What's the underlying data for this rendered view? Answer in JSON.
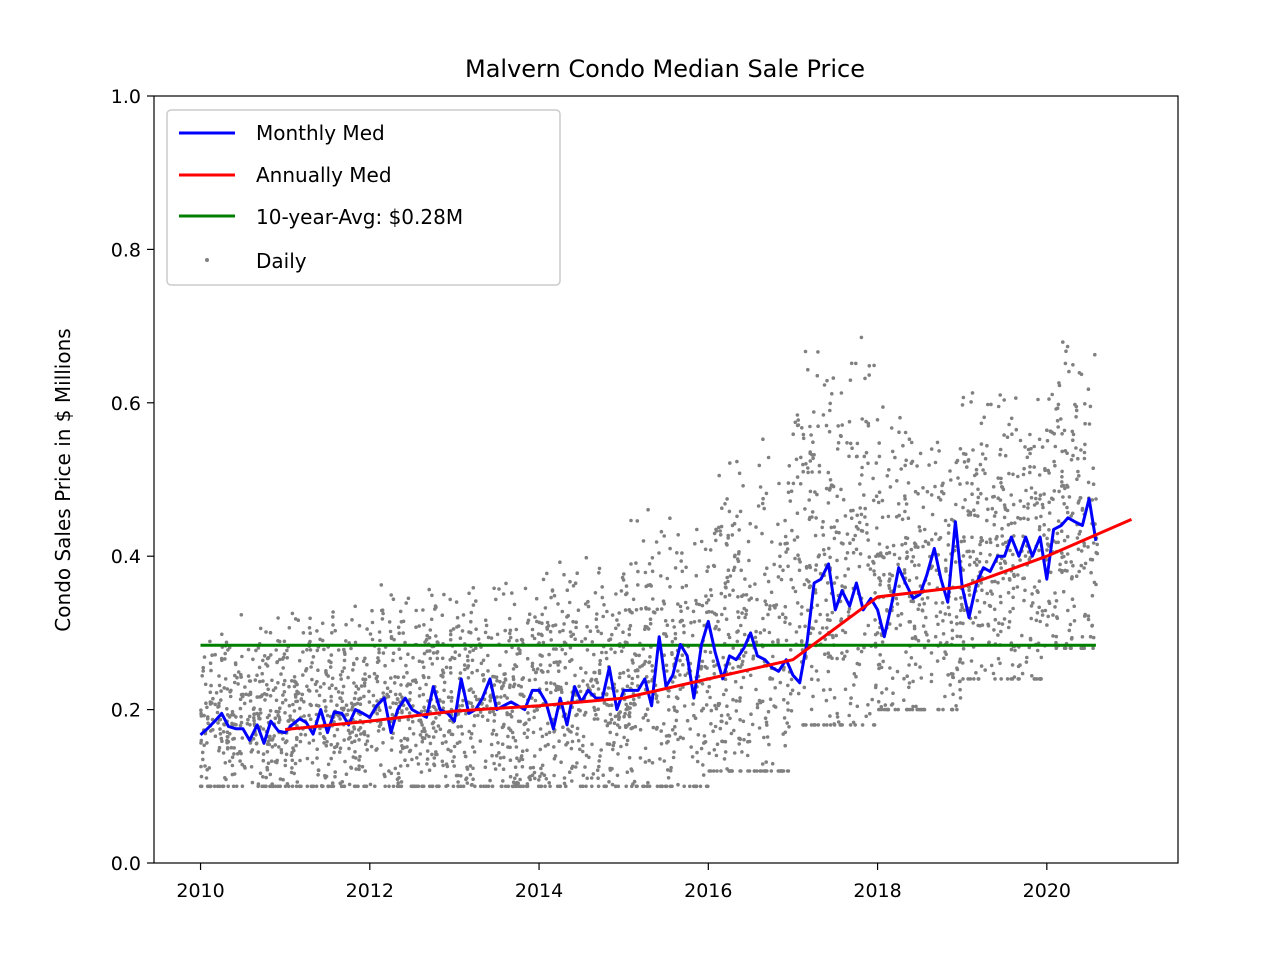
{
  "chart_data": {
    "type": "line",
    "title": "Malvern Condo Median Sale Price",
    "xlabel": "",
    "ylabel": "Condo Sales Price in $ Millions",
    "xlim": [
      2009.45,
      2021.55
    ],
    "ylim": [
      0.0,
      1.0
    ],
    "x_ticks": [
      2010,
      2012,
      2014,
      2016,
      2018,
      2020
    ],
    "x_tick_labels": [
      "2010",
      "2012",
      "2014",
      "2016",
      "2018",
      "2020"
    ],
    "y_ticks": [
      0.0,
      0.2,
      0.4,
      0.6,
      0.8,
      1.0
    ],
    "y_tick_labels": [
      "0.0",
      "0.2",
      "0.4",
      "0.6",
      "0.8",
      "1.0"
    ],
    "grid": false,
    "legend_position": "upper-left",
    "series": [
      {
        "name": "Monthly Med",
        "kind": "line",
        "color": "#0000ff",
        "x": [
          2010.0,
          2010.08,
          2010.17,
          2010.25,
          2010.33,
          2010.42,
          2010.5,
          2010.58,
          2010.67,
          2010.75,
          2010.83,
          2010.92,
          2011.0,
          2011.08,
          2011.17,
          2011.25,
          2011.33,
          2011.42,
          2011.5,
          2011.58,
          2011.67,
          2011.75,
          2011.83,
          2011.92,
          2012.0,
          2012.08,
          2012.17,
          2012.25,
          2012.33,
          2012.42,
          2012.5,
          2012.58,
          2012.67,
          2012.75,
          2012.83,
          2012.92,
          2013.0,
          2013.08,
          2013.17,
          2013.25,
          2013.33,
          2013.42,
          2013.5,
          2013.58,
          2013.67,
          2013.75,
          2013.83,
          2013.92,
          2014.0,
          2014.08,
          2014.17,
          2014.25,
          2014.33,
          2014.42,
          2014.5,
          2014.58,
          2014.67,
          2014.75,
          2014.83,
          2014.92,
          2015.0,
          2015.08,
          2015.17,
          2015.25,
          2015.33,
          2015.42,
          2015.5,
          2015.58,
          2015.67,
          2015.75,
          2015.83,
          2015.92,
          2016.0,
          2016.08,
          2016.17,
          2016.25,
          2016.33,
          2016.42,
          2016.5,
          2016.58,
          2016.67,
          2016.75,
          2016.83,
          2016.92,
          2017.0,
          2017.08,
          2017.17,
          2017.25,
          2017.33,
          2017.42,
          2017.5,
          2017.58,
          2017.67,
          2017.75,
          2017.83,
          2017.92,
          2018.0,
          2018.08,
          2018.17,
          2018.25,
          2018.33,
          2018.42,
          2018.5,
          2018.58,
          2018.67,
          2018.75,
          2018.83,
          2018.92,
          2019.0,
          2019.08,
          2019.17,
          2019.25,
          2019.33,
          2019.42,
          2019.5,
          2019.58,
          2019.67,
          2019.75,
          2019.83,
          2019.92,
          2020.0,
          2020.08,
          2020.17,
          2020.25,
          2020.33,
          2020.42,
          2020.5,
          2020.58
        ],
        "y": [
          0.167,
          0.175,
          0.185,
          0.195,
          0.178,
          0.175,
          0.175,
          0.16,
          0.18,
          0.156,
          0.185,
          0.172,
          0.17,
          0.18,
          0.188,
          0.183,
          0.168,
          0.2,
          0.17,
          0.197,
          0.195,
          0.18,
          0.2,
          0.195,
          0.19,
          0.205,
          0.215,
          0.17,
          0.2,
          0.215,
          0.2,
          0.195,
          0.19,
          0.23,
          0.2,
          0.195,
          0.185,
          0.24,
          0.195,
          0.2,
          0.215,
          0.24,
          0.2,
          0.205,
          0.21,
          0.205,
          0.2,
          0.225,
          0.225,
          0.21,
          0.175,
          0.215,
          0.18,
          0.23,
          0.21,
          0.225,
          0.215,
          0.215,
          0.255,
          0.2,
          0.225,
          0.225,
          0.225,
          0.24,
          0.205,
          0.295,
          0.23,
          0.245,
          0.285,
          0.27,
          0.215,
          0.285,
          0.315,
          0.275,
          0.24,
          0.27,
          0.265,
          0.28,
          0.3,
          0.27,
          0.265,
          0.255,
          0.25,
          0.265,
          0.245,
          0.235,
          0.29,
          0.365,
          0.37,
          0.39,
          0.33,
          0.355,
          0.335,
          0.365,
          0.33,
          0.345,
          0.33,
          0.295,
          0.34,
          0.385,
          0.365,
          0.345,
          0.35,
          0.375,
          0.41,
          0.37,
          0.34,
          0.445,
          0.36,
          0.32,
          0.365,
          0.385,
          0.38,
          0.4,
          0.4,
          0.425,
          0.4,
          0.425,
          0.4,
          0.425,
          0.37,
          0.435,
          0.44,
          0.45,
          0.445,
          0.44,
          0.475,
          0.42
        ]
      },
      {
        "name": "Annually Med",
        "kind": "line",
        "color": "#ff0000",
        "x": [
          2011.0,
          2012.0,
          2013.0,
          2014.0,
          2015.0,
          2016.0,
          2017.0,
          2018.0,
          2019.0,
          2020.0,
          2021.0
        ],
        "y": [
          0.174,
          0.185,
          0.198,
          0.205,
          0.215,
          0.24,
          0.265,
          0.347,
          0.36,
          0.4,
          0.448
        ]
      },
      {
        "name": "10-year-Avg: $0.28M",
        "kind": "hline",
        "color": "#008000",
        "x": [
          2010.0,
          2020.58
        ],
        "y": [
          0.284,
          0.284
        ]
      },
      {
        "name": "Daily",
        "kind": "scatter",
        "color": "#808080",
        "note_segments": [
          {
            "x0": 2010.0,
            "x1": 2011.0,
            "lo": 0.1,
            "hi": 0.33
          },
          {
            "x0": 2011.0,
            "x1": 2012.0,
            "lo": 0.1,
            "hi": 0.35
          },
          {
            "x0": 2012.0,
            "x1": 2013.0,
            "lo": 0.1,
            "hi": 0.37
          },
          {
            "x0": 2013.0,
            "x1": 2014.0,
            "lo": 0.1,
            "hi": 0.38
          },
          {
            "x0": 2014.0,
            "x1": 2015.0,
            "lo": 0.1,
            "hi": 0.42
          },
          {
            "x0": 2015.0,
            "x1": 2016.0,
            "lo": 0.1,
            "hi": 0.47
          },
          {
            "x0": 2016.0,
            "x1": 2017.0,
            "lo": 0.12,
            "hi": 0.57
          },
          {
            "x0": 2017.0,
            "x1": 2018.0,
            "lo": 0.18,
            "hi": 0.7
          },
          {
            "x0": 2018.0,
            "x1": 2019.0,
            "lo": 0.2,
            "hi": 0.6
          },
          {
            "x0": 2019.0,
            "x1": 2020.0,
            "lo": 0.24,
            "hi": 0.65
          },
          {
            "x0": 2020.0,
            "x1": 2020.6,
            "lo": 0.28,
            "hi": 0.71
          }
        ]
      }
    ]
  }
}
